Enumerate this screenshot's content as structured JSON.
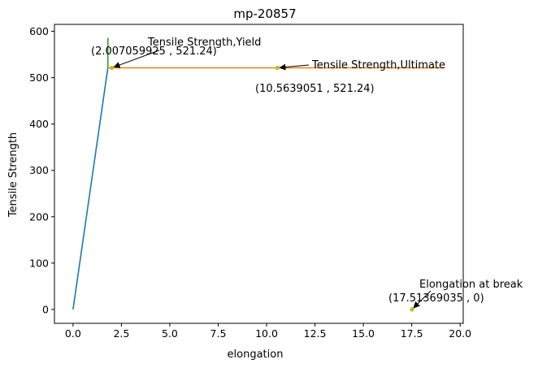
{
  "chart_data": {
    "type": "line",
    "title": "mp-20857",
    "xlabel": "elongation",
    "ylabel": "Tensile Strength",
    "xlim": [
      -0.96,
      20.16
    ],
    "ylim": [
      -30,
      615
    ],
    "xticks": [
      0.0,
      2.5,
      5.0,
      7.5,
      10.0,
      12.5,
      15.0,
      17.5,
      20.0
    ],
    "xtick_labels": [
      "0.0",
      "2.5",
      "5.0",
      "7.5",
      "10.0",
      "12.5",
      "15.0",
      "17.5",
      "20.0"
    ],
    "yticks": [
      0,
      100,
      200,
      300,
      400,
      500,
      600
    ],
    "ytick_labels": [
      "0",
      "100",
      "200",
      "300",
      "400",
      "500",
      "600"
    ],
    "grid": false,
    "series": [
      {
        "color": "#1f77b4",
        "x": [
          0.0,
          1.8
        ],
        "y": [
          0,
          521.24
        ]
      },
      {
        "color": "#ff7f0e",
        "x": [
          1.8,
          19.2
        ],
        "y": [
          521.24,
          521.24
        ]
      },
      {
        "color": "#2ca02c",
        "x": [
          1.8,
          1.8
        ],
        "y": [
          521.24,
          586
        ]
      }
    ],
    "points": [
      {
        "x": 2.007059925,
        "y": 521.24,
        "color": "#bcbd22"
      },
      {
        "x": 10.5639051,
        "y": 521.24,
        "color": "#bcbd22"
      },
      {
        "x": 17.51369035,
        "y": 0,
        "color": "#bcbd22"
      }
    ],
    "annotations": [
      {
        "label": "Tensile Strength,Yield",
        "coords": "(2.007059925 , 521.24)",
        "x": 2.007059925,
        "y": 521.24
      },
      {
        "label": "Tensile Strength,Ultimate",
        "coords": "(10.5639051 , 521.24)",
        "x": 10.5639051,
        "y": 521.24
      },
      {
        "label": "Elongation at break",
        "coords": "(17.51369035 , 0)",
        "x": 17.51369035,
        "y": 0
      }
    ]
  }
}
